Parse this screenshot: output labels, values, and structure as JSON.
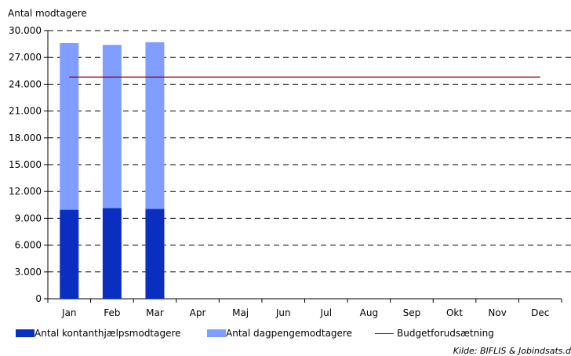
{
  "chart_data": {
    "type": "bar",
    "stacked": true,
    "ylabel": "Antal modtagere",
    "ylim": [
      0,
      30000
    ],
    "yticks": [
      "0",
      "3.000",
      "6.000",
      "9.000",
      "12.000",
      "15.000",
      "18.000",
      "21.000",
      "24.000",
      "27.000",
      "30.000"
    ],
    "ytick_values": [
      0,
      3000,
      6000,
      9000,
      12000,
      15000,
      18000,
      21000,
      24000,
      27000,
      30000
    ],
    "categories": [
      "Jan",
      "Feb",
      "Mar",
      "Apr",
      "Maj",
      "Jun",
      "Jul",
      "Aug",
      "Sep",
      "Okt",
      "Nov",
      "Dec"
    ],
    "series": [
      {
        "name": "Antal kontanthjælpsmodtagere",
        "color": "#0a2ebf",
        "values": [
          9950,
          10150,
          10050,
          null,
          null,
          null,
          null,
          null,
          null,
          null,
          null,
          null
        ]
      },
      {
        "name": "Antal dagpengemodtagere",
        "color": "#7f9eff",
        "values": [
          18650,
          18250,
          18650,
          null,
          null,
          null,
          null,
          null,
          null,
          null,
          null,
          null
        ]
      }
    ],
    "line_series": {
      "name": "Budgetforudsætning",
      "color": "#8b0000",
      "value": 24800
    },
    "grid": "dashed horizontal",
    "legend_position": "bottom"
  },
  "source": "Kilde: BIFLIS & Jobindsats.d"
}
